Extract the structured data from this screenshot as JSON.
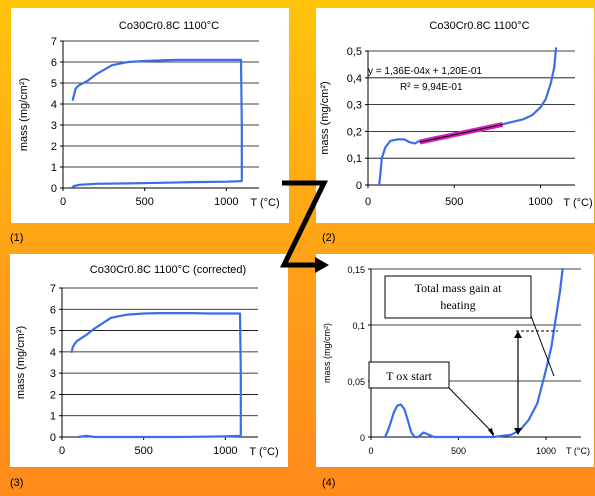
{
  "panel_labels": [
    "(1)",
    "(2)",
    "(3)",
    "(4)"
  ],
  "colors": {
    "curve": "#3a6ee8",
    "fit": "#d61fb8",
    "arrow": "#000000"
  },
  "chart_data": [
    {
      "type": "line",
      "title": "Co30Cr0.8C 1100°C",
      "xlabel": "T (°C)",
      "ylabel": "mass (mg/cm²)",
      "xlim": [
        0,
        1200
      ],
      "ylim": [
        0,
        7
      ],
      "xticks": [
        0,
        500,
        1000
      ],
      "yticks": [
        0,
        1,
        2,
        3,
        4,
        5,
        6,
        7
      ],
      "xtick_labels": [
        "0",
        "500",
        "1000"
      ],
      "ytick_labels": [
        "0",
        "1",
        "2",
        "3",
        "4",
        "5",
        "6",
        "7"
      ],
      "grid": true,
      "series": [
        {
          "x": [
            60,
            70,
            75,
            85,
            100,
            150,
            200,
            300,
            400,
            500,
            600,
            700,
            800,
            900,
            1000,
            1090,
            1095,
            1095,
            1093,
            1000,
            800,
            600,
            400,
            200,
            100,
            70,
            60
          ],
          "y": [
            4.2,
            4.5,
            4.7,
            4.8,
            4.9,
            5.1,
            5.4,
            5.85,
            6.0,
            6.05,
            6.08,
            6.1,
            6.1,
            6.1,
            6.1,
            6.1,
            3.0,
            0.35,
            0.33,
            0.3,
            0.28,
            0.25,
            0.22,
            0.2,
            0.15,
            0.1,
            0.05
          ]
        }
      ]
    },
    {
      "type": "line",
      "title": "Co30Cr0.8C 1100°C",
      "xlabel": "T (°C)",
      "ylabel": "mass (mg/cm²)",
      "xlim": [
        0,
        1200
      ],
      "ylim": [
        0,
        0.5
      ],
      "xticks": [
        0,
        500,
        1000
      ],
      "yticks": [
        0,
        0.1,
        0.2,
        0.3,
        0.4,
        0.5
      ],
      "xtick_labels": [
        "0",
        "500",
        "1000"
      ],
      "ytick_labels": [
        "0",
        "0,1",
        "0,2",
        "0,3",
        "0,4",
        "0,5"
      ],
      "grid": true,
      "annotations": [
        "y = 1,36E-04x + 1,20E-01",
        "R² = 9,94E-01"
      ],
      "series": [
        {
          "x": [
            65,
            70,
            80,
            100,
            130,
            170,
            210,
            240,
            270,
            300,
            400,
            500,
            600,
            700,
            800,
            900,
            950,
            1000,
            1030,
            1060,
            1080,
            1090
          ],
          "y": [
            0.0,
            0.03,
            0.1,
            0.14,
            0.165,
            0.17,
            0.17,
            0.16,
            0.155,
            0.165,
            0.18,
            0.19,
            0.2,
            0.215,
            0.23,
            0.245,
            0.26,
            0.29,
            0.32,
            0.38,
            0.44,
            0.51
          ]
        },
        {
          "x": [
            300,
            780
          ],
          "y": [
            0.16,
            0.226
          ]
        }
      ]
    },
    {
      "type": "line",
      "title": "Co30Cr0.8C 1100°C (corrected)",
      "xlabel": "T (°C)",
      "ylabel": "mass (mg/cm²)",
      "xlim": [
        0,
        1200
      ],
      "ylim": [
        0,
        7
      ],
      "xticks": [
        0,
        500,
        1000
      ],
      "yticks": [
        0,
        1,
        2,
        3,
        4,
        5,
        6,
        7
      ],
      "xtick_labels": [
        "0",
        "500",
        "1000"
      ],
      "ytick_labels": [
        "0",
        "1",
        "2",
        "3",
        "4",
        "5",
        "6",
        "7"
      ],
      "grid": true,
      "series": [
        {
          "x": [
            60,
            65,
            75,
            90,
            110,
            150,
            200,
            300,
            400,
            500,
            600,
            700,
            800,
            900,
            1000,
            1090,
            1095,
            1095,
            1092,
            1000,
            900,
            800,
            700,
            600,
            500,
            400,
            300,
            200,
            150,
            100
          ],
          "y": [
            4.0,
            4.2,
            4.35,
            4.5,
            4.6,
            4.8,
            5.1,
            5.6,
            5.75,
            5.8,
            5.82,
            5.82,
            5.82,
            5.8,
            5.8,
            5.8,
            3.0,
            0.1,
            0.05,
            0.03,
            0.02,
            0.01,
            0.0,
            0.0,
            0.0,
            0.0,
            0.0,
            0.0,
            0.05,
            0.0
          ]
        }
      ]
    },
    {
      "type": "line",
      "xlabel": "T (°C)",
      "ylabel": "mass (mg/cm²)",
      "xlim": [
        0,
        1200
      ],
      "ylim": [
        0,
        0.15
      ],
      "xticks": [
        0,
        500,
        1000
      ],
      "yticks": [
        0,
        0.05,
        0.1,
        0.15
      ],
      "xtick_labels": [
        "0",
        "500",
        "1000"
      ],
      "ytick_labels": [
        "0",
        "0,05",
        "0,1",
        "0,15"
      ],
      "grid": true,
      "annotations": [
        "Total mass gain at heating",
        "T ox start"
      ],
      "series": [
        {
          "x": [
            80,
            95,
            110,
            130,
            150,
            170,
            190,
            210,
            230,
            250,
            270,
            300,
            330,
            360,
            400,
            500,
            600,
            700,
            750,
            800,
            850,
            900,
            950,
            1000,
            1030,
            1060,
            1080,
            1095
          ],
          "y": [
            0.0,
            0.005,
            0.012,
            0.022,
            0.028,
            0.029,
            0.025,
            0.015,
            0.004,
            0.0,
            0.0,
            0.004,
            0.002,
            0.0,
            0.0,
            0.0,
            0.0,
            0.0,
            0.001,
            0.002,
            0.006,
            0.015,
            0.03,
            0.06,
            0.08,
            0.11,
            0.13,
            0.15
          ]
        }
      ]
    }
  ]
}
